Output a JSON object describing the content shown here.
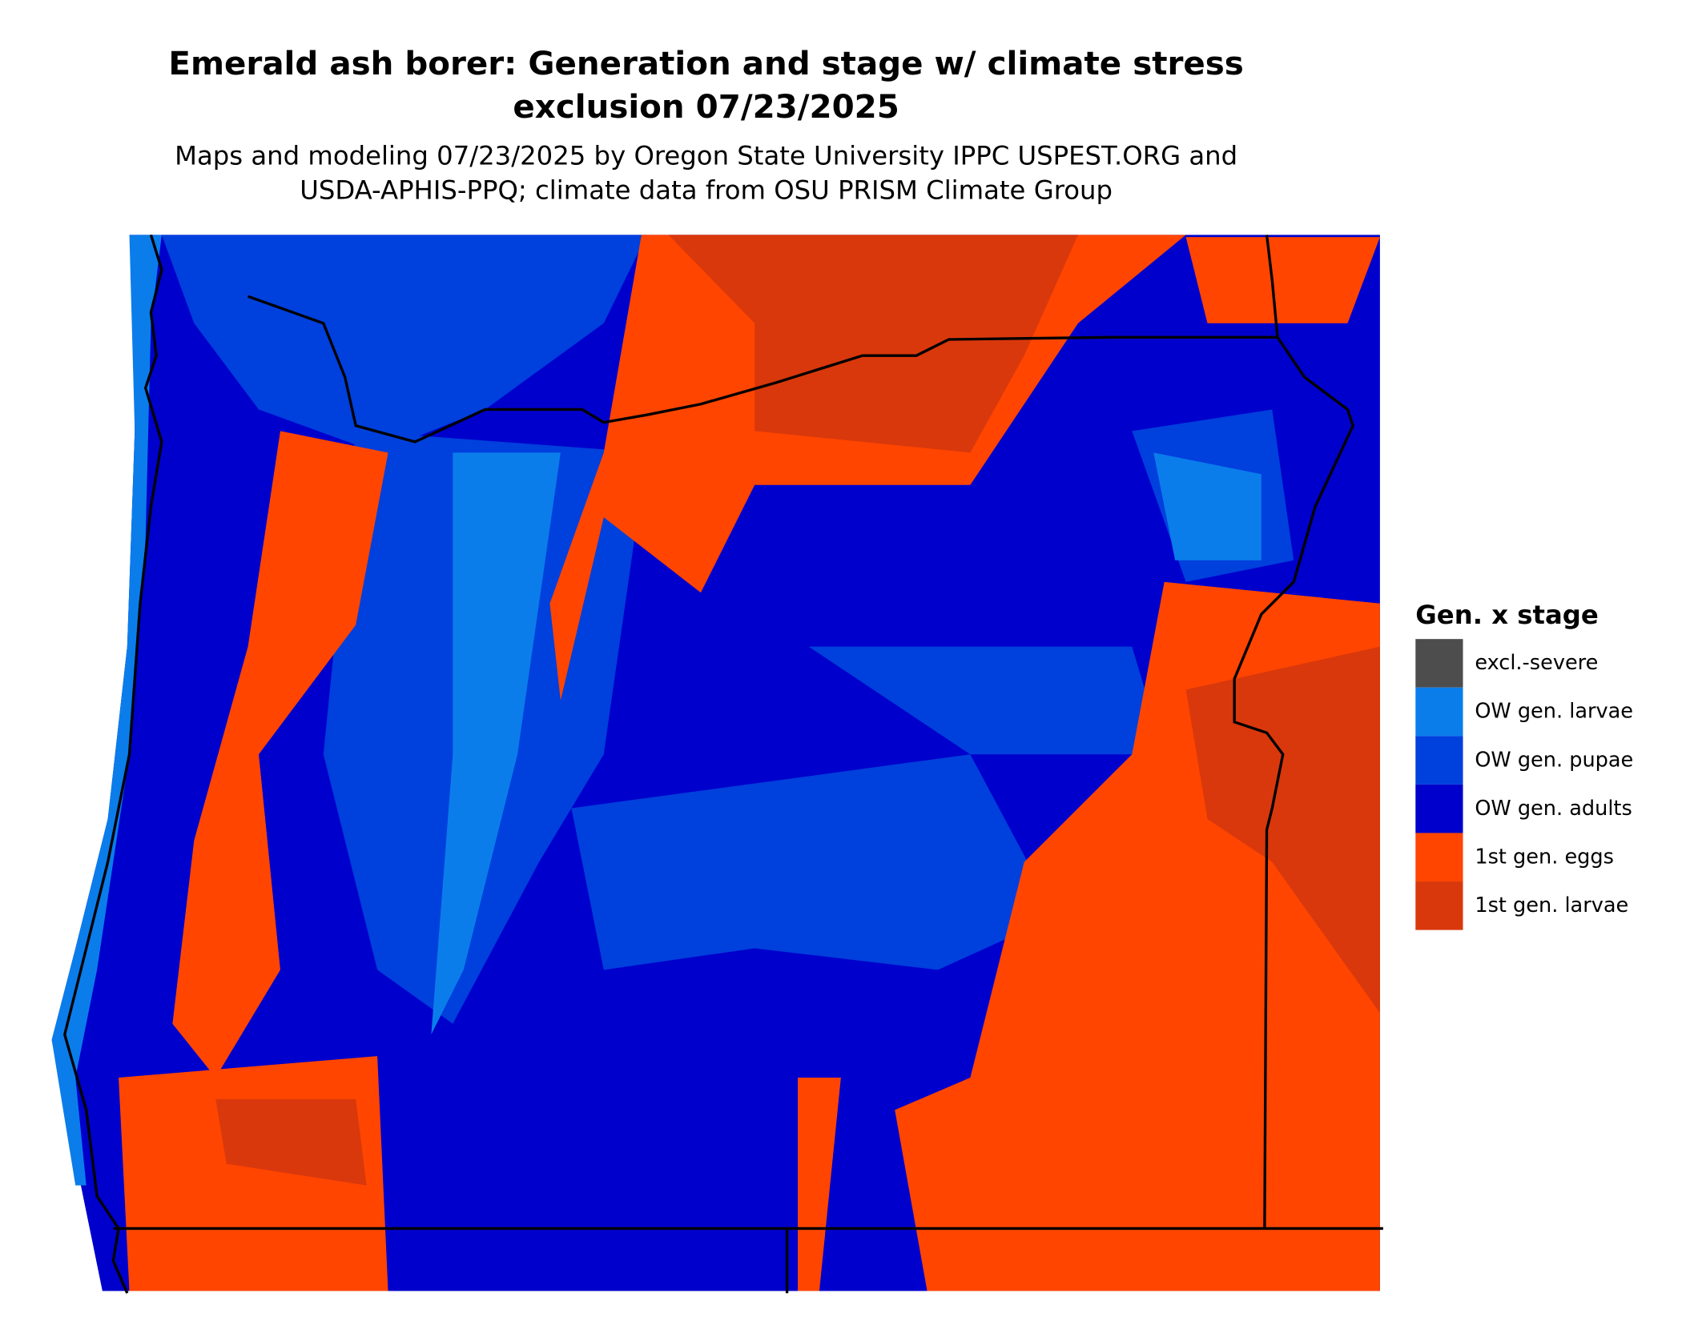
{
  "title_lines": [
    "Emerald ash borer: Generation and stage w/ climate stress",
    "exclusion 07/23/2025"
  ],
  "subtitle_lines": [
    "Maps and modeling 07/23/2025 by Oregon State University IPPC USPEST.ORG and",
    "USDA-APHIS-PPQ; climate data from OSU PRISM Climate Group"
  ],
  "legend": {
    "title": "Gen. x stage",
    "items": [
      {
        "label": "excl.-severe",
        "color": "#4d4d4d"
      },
      {
        "label": "OW gen. larvae",
        "color": "#0a7deb"
      },
      {
        "label": "OW gen. pupae",
        "color": "#0040dd"
      },
      {
        "label": "OW gen. adults",
        "color": "#0000cc"
      },
      {
        "label": "1st gen. eggs",
        "color": "#ff4500"
      },
      {
        "label": "1st gen. larvae",
        "color": "#d9380c"
      }
    ]
  }
}
